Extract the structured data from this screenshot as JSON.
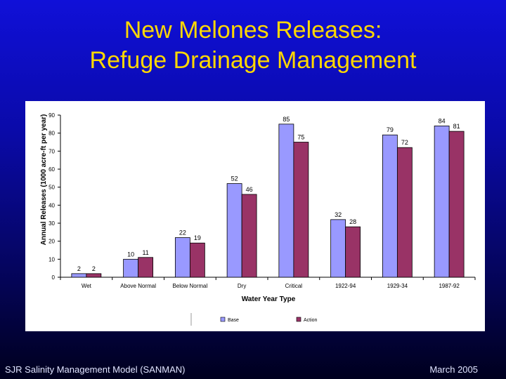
{
  "slide": {
    "title_line1": "New Melones Releases:",
    "title_line2": "Refuge Drainage Management",
    "footer_left": "SJR Salinity Management Model (SANMAN)",
    "footer_right": "March 2005"
  },
  "chart_data": {
    "type": "bar",
    "title": "",
    "xlabel": "Water Year Type",
    "ylabel": "Annual Releases (1000 acre-ft per year)",
    "ylim": [
      0,
      90
    ],
    "yticks": [
      0,
      10,
      20,
      30,
      40,
      50,
      60,
      70,
      80,
      90
    ],
    "grid": false,
    "legend_position": "bottom-center",
    "categories": [
      "Wet",
      "Above Normal",
      "Below Normal",
      "Dry",
      "Critical",
      "1922-94",
      "1929-34",
      "1987-92"
    ],
    "series": [
      {
        "name": "Base",
        "color": "#9999ff",
        "values": [
          2,
          10,
          22,
          52,
          85,
          32,
          79,
          84
        ]
      },
      {
        "name": "Action",
        "color": "#993366",
        "values": [
          2,
          11,
          19,
          46,
          75,
          28,
          72,
          81
        ]
      }
    ]
  }
}
